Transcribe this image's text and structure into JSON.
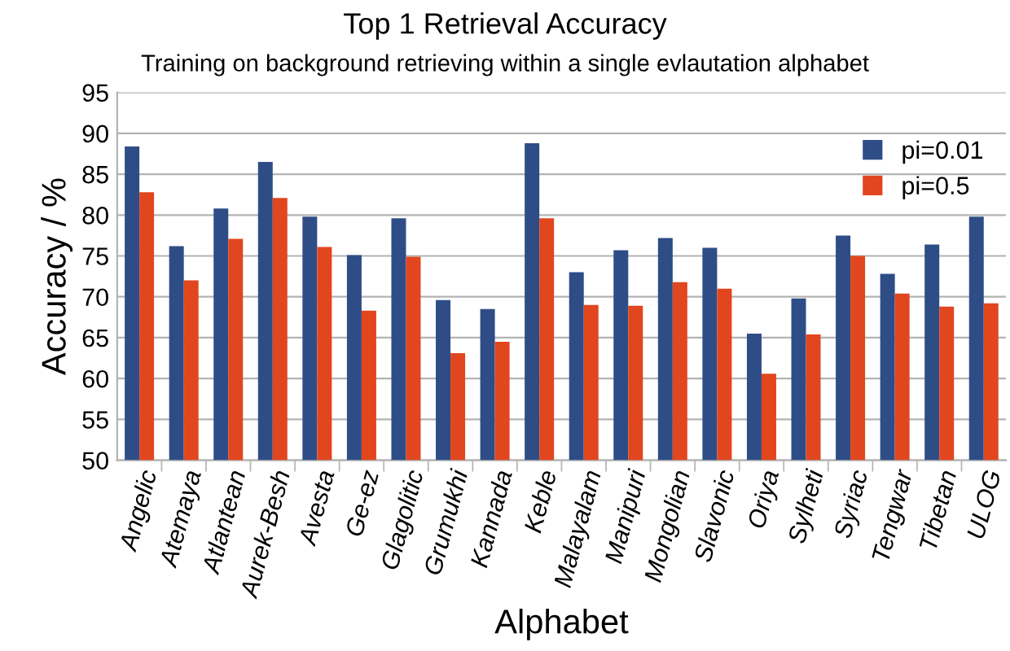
{
  "chart_data": {
    "type": "bar",
    "title": "Top 1 Retrieval Accuracy",
    "subtitle": "Training on background retrieving within a single evlautation alphabet",
    "xlabel": "Alphabet",
    "ylabel": "Accuracy / %",
    "categories": [
      "Angelic",
      "Atemaya",
      "Atlantean",
      "Aurek-Besh",
      "Avesta",
      "Ge-ez",
      "Glagolitic",
      "Grumukhi",
      "Kannada",
      "Keble",
      "Malayalam",
      "Manipuri",
      "Mongolian",
      "Slavonic",
      "Oriya",
      "Sylheti",
      "Syriac",
      "Tengwar",
      "Tibetan",
      "ULOG"
    ],
    "series": [
      {
        "name": "pi=0.01",
        "color": "#2e4d87",
        "values": [
          88.4,
          76.2,
          80.8,
          86.5,
          79.8,
          75.1,
          79.6,
          69.6,
          68.5,
          88.8,
          73.0,
          75.7,
          77.2,
          76.0,
          65.5,
          69.8,
          77.5,
          72.8,
          76.4,
          79.8
        ]
      },
      {
        "name": "pi=0.5",
        "color": "#e1461e",
        "values": [
          82.8,
          72.0,
          77.1,
          82.1,
          76.1,
          68.3,
          74.9,
          63.1,
          64.5,
          79.6,
          69.0,
          68.9,
          71.8,
          71.0,
          60.6,
          65.4,
          75.0,
          70.4,
          68.8,
          69.2
        ]
      }
    ],
    "ylim": [
      50,
      95
    ],
    "yticks": [
      50,
      55,
      60,
      65,
      70,
      75,
      80,
      85,
      90,
      95
    ],
    "grid": "y",
    "legend": "top right"
  }
}
